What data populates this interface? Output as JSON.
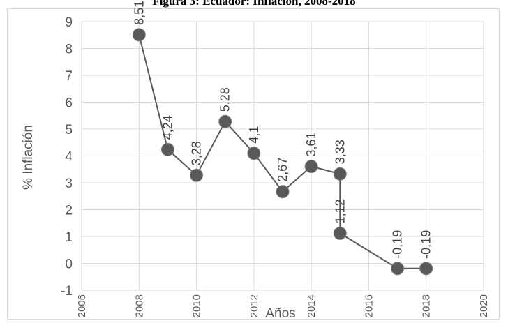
{
  "title": "Figura 3: Ecuador: Inflación, 2008-2018",
  "chart_data": {
    "type": "scatter",
    "xlabel": "Años",
    "ylabel": "% Inflación",
    "xlim": [
      2006,
      2020
    ],
    "ylim": [
      -1,
      9
    ],
    "x_ticks": [
      2006,
      2008,
      2010,
      2012,
      2014,
      2016,
      2018,
      2020
    ],
    "y_ticks": [
      -1,
      0,
      1,
      2,
      3,
      4,
      5,
      6,
      7,
      8,
      9
    ],
    "grid": true,
    "legend": "none",
    "series": [
      {
        "points": [
          {
            "x": 2008,
            "y": 8.51,
            "label": "8,51"
          },
          {
            "x": 2009,
            "y": 4.24,
            "label": "4,24"
          },
          {
            "x": 2010,
            "y": 3.28,
            "label": "3,28"
          },
          {
            "x": 2011,
            "y": 5.28,
            "label": "5,28"
          },
          {
            "x": 2012,
            "y": 4.1,
            "label": "4,1"
          },
          {
            "x": 2013,
            "y": 2.67,
            "label": "2,67"
          },
          {
            "x": 2014,
            "y": 3.61,
            "label": "3,61"
          },
          {
            "x": 2015,
            "y": 3.33,
            "label": "3,33"
          },
          {
            "x": 2015,
            "y": 1.12,
            "label": "1,12"
          },
          {
            "x": 2017,
            "y": -0.19,
            "label": "-0,19"
          },
          {
            "x": 2018,
            "y": -0.19,
            "label": "-0,19"
          }
        ]
      }
    ],
    "colors": {
      "marker": "#595959",
      "line": "#595959",
      "grid": "#d9d9d9"
    }
  }
}
